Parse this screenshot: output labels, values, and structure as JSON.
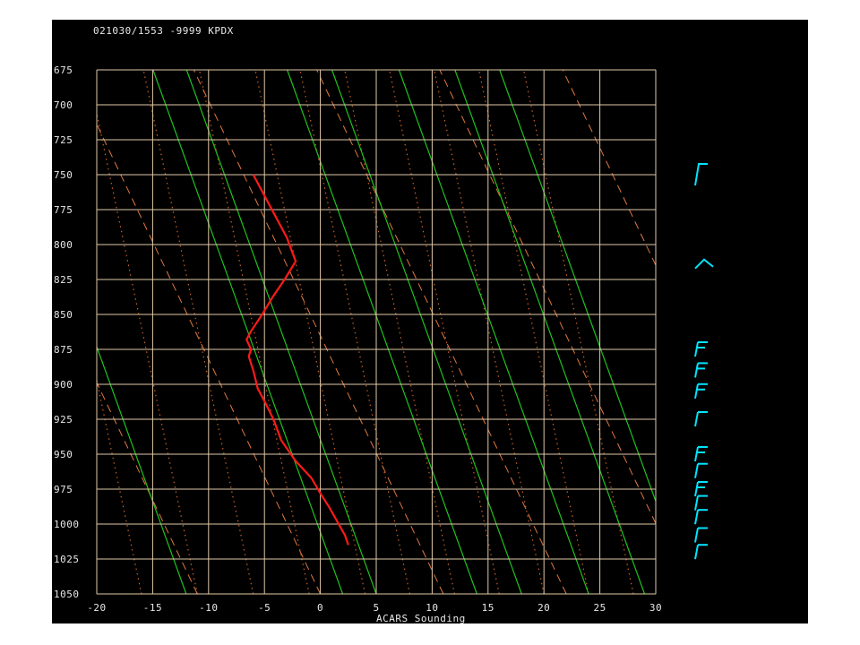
{
  "header": {
    "title": "021030/1553 -9999  KPDX"
  },
  "chart_data": {
    "type": "line",
    "title": "021030/1553 -9999  KPDX",
    "xlabel": "ACARS Sounding",
    "ylabel": "",
    "xlim": [
      -20,
      30
    ],
    "ylim": [
      1050,
      675
    ],
    "x_ticks": [
      "-20",
      "-15",
      "-10",
      "-5",
      "0",
      "5",
      "10",
      "15",
      "20",
      "25",
      "30"
    ],
    "y_ticks": [
      "675",
      "700",
      "725",
      "750",
      "775",
      "800",
      "825",
      "850",
      "875",
      "900",
      "925",
      "950",
      "975",
      "1000",
      "1025",
      "1050"
    ],
    "grid": true,
    "series": [
      {
        "name": "",
        "color": "#ff1a1a",
        "points": [
          {
            "t": -6.0,
            "p": 750
          },
          {
            "t": -5.0,
            "p": 765
          },
          {
            "t": -4.0,
            "p": 780
          },
          {
            "t": -3.0,
            "p": 795
          },
          {
            "t": -2.2,
            "p": 812
          },
          {
            "t": -3.2,
            "p": 825
          },
          {
            "t": -4.3,
            "p": 838
          },
          {
            "t": -5.2,
            "p": 850
          },
          {
            "t": -6.2,
            "p": 862
          },
          {
            "t": -6.6,
            "p": 868
          },
          {
            "t": -6.2,
            "p": 875
          },
          {
            "t": -6.4,
            "p": 880
          },
          {
            "t": -6.0,
            "p": 890
          },
          {
            "t": -5.6,
            "p": 903
          },
          {
            "t": -5.0,
            "p": 912
          },
          {
            "t": -4.2,
            "p": 925
          },
          {
            "t": -3.5,
            "p": 940
          },
          {
            "t": -2.2,
            "p": 955
          },
          {
            "t": -0.8,
            "p": 967
          },
          {
            "t": 0.0,
            "p": 978
          },
          {
            "t": 0.8,
            "p": 988
          },
          {
            "t": 1.5,
            "p": 998
          },
          {
            "t": 2.2,
            "p": 1008
          },
          {
            "t": 2.5,
            "p": 1015
          }
        ]
      }
    ],
    "wind_barb_color": "#00e5ff",
    "line_colors": {
      "grid": "#e0c8a8",
      "dry_adiabat": "#e07840",
      "moist_adiabat": "#1fc21f",
      "mixing_ratio": "#c86428"
    }
  }
}
